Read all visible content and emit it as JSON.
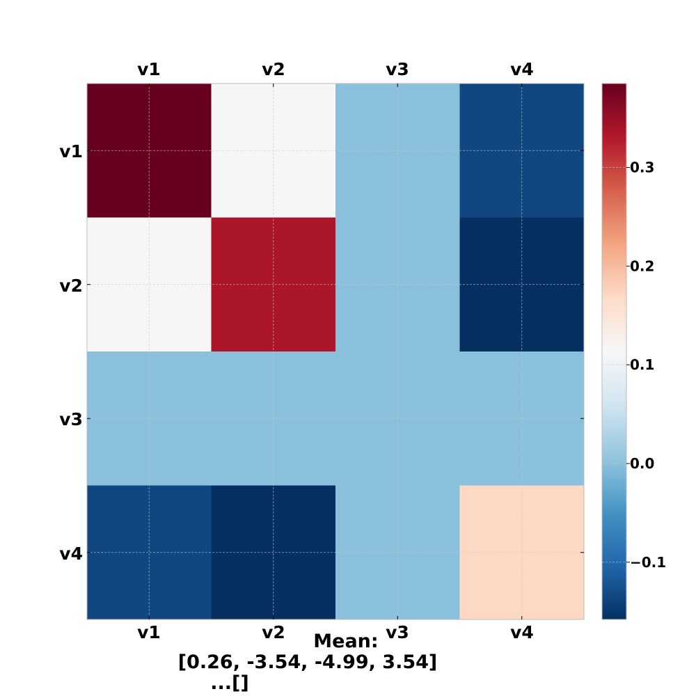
{
  "chart_data": {
    "type": "heatmap",
    "x_labels": [
      "v1",
      "v2",
      "v3",
      "v4"
    ],
    "y_labels": [
      "v1",
      "v2",
      "v3",
      "v4"
    ],
    "values": [
      [
        0.385,
        0.115,
        0.0,
        -0.135
      ],
      [
        0.115,
        0.335,
        0.0,
        -0.158
      ],
      [
        0.0,
        0.0,
        0.0,
        0.0
      ],
      [
        -0.135,
        -0.158,
        0.0,
        0.17
      ]
    ],
    "colorbar": {
      "min": -0.158,
      "max": 0.385,
      "ticks": [
        -0.1,
        0.0,
        0.1,
        0.2,
        0.3
      ],
      "tick_labels": [
        "−0.1",
        "0.0",
        "0.1",
        "0.2",
        "0.3"
      ],
      "colormap": "RdBu_r"
    },
    "grid": true,
    "caption_lines": [
      "Mean:",
      "[0.26, -3.54, -4.99, 3.54]",
      "...[]"
    ]
  }
}
